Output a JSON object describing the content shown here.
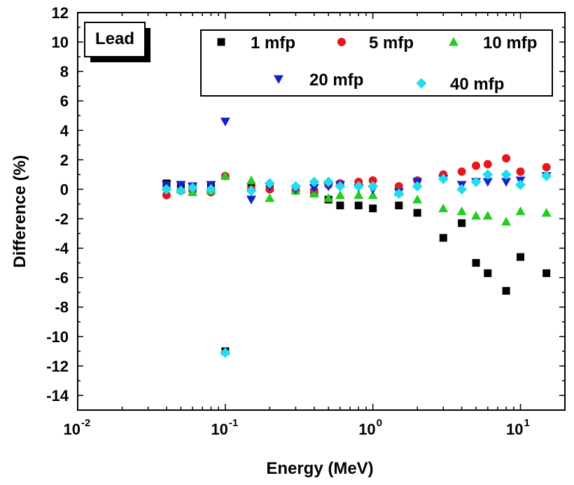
{
  "chart_data": {
    "type": "scatter",
    "title": "",
    "xlabel": "Energy (MeV)",
    "ylabel": "Difference (%)",
    "xscale": "log",
    "xlim": [
      0.01,
      20
    ],
    "ylim": [
      -15,
      12
    ],
    "grid": false,
    "x_tick_values": [
      0.01,
      0.1,
      1,
      10
    ],
    "x_tick_labels": [
      {
        "base": "10",
        "exp": "-2"
      },
      {
        "base": "10",
        "exp": "-1"
      },
      {
        "base": "10",
        "exp": "0"
      },
      {
        "base": "10",
        "exp": "1"
      }
    ],
    "y_ticks": [
      12,
      10,
      8,
      6,
      4,
      2,
      0,
      -2,
      -4,
      -6,
      -8,
      -10,
      -12,
      -14
    ],
    "y_tick_labels": [
      "12",
      "10",
      "8",
      "6",
      "4",
      "2",
      "0",
      "-2",
      "-4",
      "-6",
      "-8",
      "-10",
      "-12",
      "-14"
    ],
    "annotation": "Lead",
    "legend_position": "top-right",
    "series": [
      {
        "name": "1 mfp",
        "marker": "square",
        "color": "#000000",
        "points": [
          [
            0.04,
            0.4
          ],
          [
            0.05,
            0.3
          ],
          [
            0.06,
            0.2
          ],
          [
            0.08,
            0.2
          ],
          [
            0.1,
            -11.0
          ],
          [
            0.15,
            0.2
          ],
          [
            0.2,
            0.1
          ],
          [
            0.3,
            -0.1
          ],
          [
            0.4,
            -0.2
          ],
          [
            0.5,
            -0.7
          ],
          [
            0.6,
            -1.1
          ],
          [
            0.8,
            -1.1
          ],
          [
            1,
            -1.3
          ],
          [
            1.5,
            -1.1
          ],
          [
            2,
            -1.6
          ],
          [
            3,
            -3.3
          ],
          [
            4,
            -2.3
          ],
          [
            5,
            -5.0
          ],
          [
            6,
            -5.7
          ],
          [
            8,
            -6.9
          ],
          [
            10,
            -4.6
          ],
          [
            15,
            -5.7
          ]
        ]
      },
      {
        "name": "5 mfp",
        "marker": "circle",
        "color": "#e8161c",
        "points": [
          [
            0.04,
            -0.4
          ],
          [
            0.05,
            -0.1
          ],
          [
            0.06,
            -0.1
          ],
          [
            0.08,
            -0.2
          ],
          [
            0.1,
            0.9
          ],
          [
            0.15,
            0.0
          ],
          [
            0.2,
            0.0
          ],
          [
            0.3,
            -0.1
          ],
          [
            0.4,
            -0.2
          ],
          [
            0.5,
            0.3
          ],
          [
            0.6,
            0.4
          ],
          [
            0.8,
            0.5
          ],
          [
            1,
            0.6
          ],
          [
            1.5,
            0.2
          ],
          [
            2,
            0.6
          ],
          [
            3,
            1.0
          ],
          [
            4,
            1.2
          ],
          [
            5,
            1.6
          ],
          [
            6,
            1.7
          ],
          [
            8,
            2.1
          ],
          [
            10,
            1.2
          ],
          [
            15,
            1.5
          ]
        ]
      },
      {
        "name": "10 mfp",
        "marker": "triangle-up",
        "color": "#22cc22",
        "points": [
          [
            0.04,
            0.2
          ],
          [
            0.05,
            0.0
          ],
          [
            0.06,
            -0.2
          ],
          [
            0.08,
            -0.1
          ],
          [
            0.1,
            0.9
          ],
          [
            0.15,
            0.6
          ],
          [
            0.2,
            -0.6
          ],
          [
            0.3,
            -0.1
          ],
          [
            0.4,
            -0.3
          ],
          [
            0.5,
            -0.6
          ],
          [
            0.6,
            -0.4
          ],
          [
            0.8,
            -0.4
          ],
          [
            1,
            -0.4
          ],
          [
            1.5,
            -0.2
          ],
          [
            2,
            -0.7
          ],
          [
            3,
            -1.3
          ],
          [
            4,
            -1.5
          ],
          [
            5,
            -1.8
          ],
          [
            6,
            -1.8
          ],
          [
            8,
            -2.2
          ],
          [
            10,
            -1.5
          ],
          [
            15,
            -1.6
          ]
        ]
      },
      {
        "name": "20 mfp",
        "marker": "triangle-down",
        "color": "#1122cc",
        "points": [
          [
            0.04,
            0.3
          ],
          [
            0.05,
            0.3
          ],
          [
            0.06,
            0.2
          ],
          [
            0.08,
            0.3
          ],
          [
            0.1,
            4.6
          ],
          [
            0.15,
            -0.7
          ],
          [
            0.2,
            0.2
          ],
          [
            0.3,
            0.0
          ],
          [
            0.4,
            0.1
          ],
          [
            0.5,
            0.2
          ],
          [
            0.6,
            0.3
          ],
          [
            0.8,
            0.1
          ],
          [
            1,
            0.0
          ],
          [
            1.5,
            -0.2
          ],
          [
            2,
            0.5
          ],
          [
            3,
            0.7
          ],
          [
            4,
            0.3
          ],
          [
            5,
            0.5
          ],
          [
            6,
            0.5
          ],
          [
            8,
            0.5
          ],
          [
            10,
            0.6
          ],
          [
            15,
            0.9
          ]
        ]
      },
      {
        "name": "40 mfp",
        "marker": "diamond",
        "color": "#22dcee",
        "points": [
          [
            0.04,
            0.0
          ],
          [
            0.05,
            -0.1
          ],
          [
            0.06,
            0.1
          ],
          [
            0.08,
            0.0
          ],
          [
            0.1,
            -11.1
          ],
          [
            0.15,
            -0.1
          ],
          [
            0.2,
            0.4
          ],
          [
            0.3,
            0.2
          ],
          [
            0.4,
            0.5
          ],
          [
            0.5,
            0.5
          ],
          [
            0.6,
            0.2
          ],
          [
            0.8,
            0.2
          ],
          [
            1,
            0.2
          ],
          [
            1.5,
            -0.3
          ],
          [
            2,
            0.2
          ],
          [
            3,
            0.7
          ],
          [
            4,
            0.0
          ],
          [
            5,
            0.5
          ],
          [
            6,
            1.0
          ],
          [
            8,
            1.0
          ],
          [
            10,
            0.3
          ],
          [
            15,
            0.9
          ]
        ]
      }
    ]
  }
}
